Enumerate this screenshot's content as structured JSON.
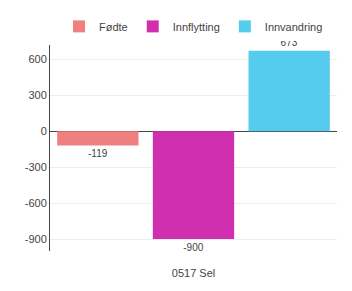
{
  "chart_data": {
    "type": "bar",
    "categories": [
      null,
      "0517 Sel",
      null
    ],
    "series": [
      {
        "name": "Fødte",
        "color": "#f08080",
        "values": [
          -119,
          null,
          null
        ]
      },
      {
        "name": "Innflytting",
        "color": "#d030b0",
        "values": [
          null,
          -900,
          null
        ]
      },
      {
        "name": "Innvandring",
        "color": "#55ccee",
        "values": [
          null,
          null,
          673
        ]
      }
    ],
    "ylim": [
      -1000,
      720
    ],
    "yticks": [
      -900,
      -600,
      -300,
      0,
      300,
      600
    ],
    "grid": true,
    "legend": "top",
    "data_labels": true
  }
}
